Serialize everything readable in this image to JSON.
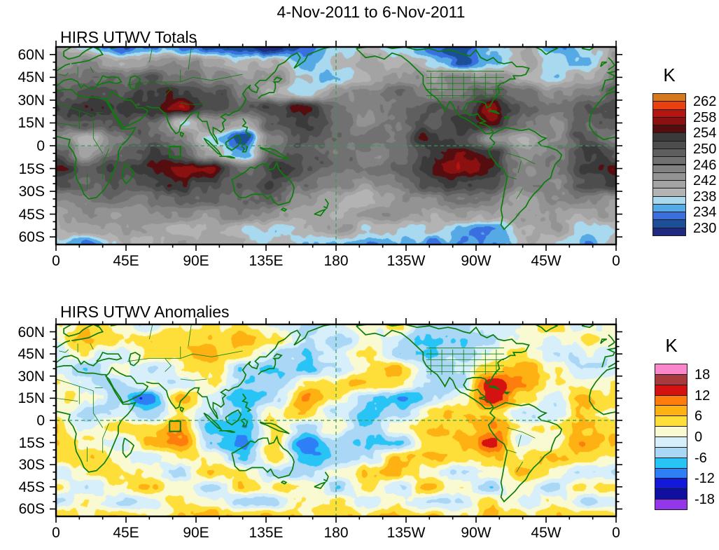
{
  "figure": {
    "title": "4-Nov-2011 to 6-Nov-2011"
  },
  "panels": [
    {
      "title": "HIRS UTWV Totals",
      "colorbar_title": "K"
    },
    {
      "title": "HIRS UTWV Anomalies",
      "colorbar_title": "K"
    }
  ],
  "axes": {
    "x_tick_labels": [
      "0",
      "45E",
      "90E",
      "135E",
      "180",
      "135W",
      "90W",
      "45W",
      "0"
    ],
    "y_tick_labels": [
      "60N",
      "45N",
      "30N",
      "15N",
      "0",
      "15S",
      "30S",
      "45S",
      "60S"
    ]
  },
  "annotations": {
    "equator_line": "dashed-green",
    "meridian_180_line": "dashed-green",
    "study_box": {
      "lon": [
        73,
        80
      ],
      "lat": [
        -7.5,
        -0.5
      ]
    }
  },
  "style_colors": {
    "coastline_green": "#0a7d0a",
    "dashed_line_green": "#2f9e55",
    "frame_black": "#000000"
  },
  "chart_data": [
    {
      "type": "heatmap",
      "subtype": "filled-contour-map",
      "title": "HIRS UTWV Totals",
      "units": "K",
      "lon_range": [
        0,
        360
      ],
      "lat_range": [
        -65,
        65
      ],
      "level_min": 228,
      "level_max": 264,
      "level_step": 2,
      "colorbar_tick_labels": [
        "262",
        "258",
        "254",
        "250",
        "246",
        "242",
        "238",
        "234",
        "230"
      ],
      "palette_low_to_high": [
        "#1f2a80",
        "#1c4f97",
        "#3a6fe0",
        "#55aae6",
        "#a9d9ee",
        "#b3b3b3",
        "#a3a3a3",
        "#939393",
        "#828282",
        "#717171",
        "#5f5f5f",
        "#4d4d4d",
        "#3a3a3a",
        "#550d10",
        "#8b1010",
        "#b51410",
        "#e8400e",
        "#d5791e"
      ],
      "grid": {
        "lon_start": 0,
        "lon_step": 20,
        "lat_start": 65,
        "lat_step": -10,
        "values": [
          [
            241,
            237,
            233,
            235,
            234,
            231,
            229,
            230,
            234,
            237,
            238,
            236,
            233,
            231,
            236,
            239,
            233,
            237,
            241
          ],
          [
            243,
            245,
            240,
            243,
            244,
            241,
            238,
            241,
            236,
            238,
            241,
            239,
            237,
            232,
            237,
            240,
            238,
            236,
            243
          ],
          [
            246,
            247,
            247,
            249,
            247,
            245,
            242,
            244,
            237,
            236,
            240,
            243,
            242,
            245,
            243,
            240,
            236,
            241,
            246
          ],
          [
            249,
            252,
            250,
            252,
            253,
            251,
            247,
            240,
            237,
            243,
            245,
            247,
            244,
            247,
            250,
            247,
            243,
            246,
            249
          ],
          [
            252,
            255,
            253,
            254,
            257,
            250,
            249,
            252,
            255,
            248,
            245,
            247,
            250,
            249,
            257,
            249,
            247,
            250,
            252
          ],
          [
            249,
            251,
            250,
            248,
            238,
            244,
            240,
            250,
            253,
            248,
            244,
            246,
            250,
            252,
            255,
            246,
            244,
            249,
            249
          ],
          [
            245,
            239,
            245,
            249,
            245,
            236,
            230,
            245,
            251,
            248,
            246,
            248,
            254,
            251,
            244,
            238,
            245,
            250,
            245
          ],
          [
            250,
            242,
            248,
            252,
            250,
            240,
            233,
            248,
            250,
            247,
            245,
            247,
            252,
            256,
            254,
            243,
            246,
            253,
            250
          ],
          [
            255,
            249,
            252,
            255,
            257,
            256,
            246,
            253,
            250,
            248,
            246,
            249,
            253,
            258,
            255,
            245,
            247,
            254,
            255
          ],
          [
            251,
            247,
            250,
            252,
            253,
            252,
            249,
            252,
            247,
            245,
            243,
            246,
            250,
            253,
            251,
            246,
            244,
            250,
            251
          ],
          [
            243,
            246,
            247,
            246,
            248,
            249,
            247,
            249,
            243,
            241,
            238,
            243,
            245,
            247,
            245,
            241,
            244,
            246,
            243
          ],
          [
            242,
            243,
            242,
            244,
            245,
            243,
            245,
            243,
            241,
            239,
            241,
            243,
            241,
            243,
            241,
            243,
            241,
            239,
            242
          ],
          [
            239,
            241,
            243,
            241,
            239,
            241,
            239,
            237,
            239,
            241,
            239,
            237,
            239,
            236,
            234,
            239,
            241,
            237,
            239
          ],
          [
            239,
            233,
            239,
            239,
            241,
            241,
            239,
            239,
            237,
            235,
            233,
            235,
            233,
            235,
            233,
            239,
            238,
            235,
            239
          ]
        ]
      }
    },
    {
      "type": "heatmap",
      "subtype": "filled-contour-map",
      "title": "HIRS UTWV Anomalies",
      "units": "K",
      "lon_range": [
        0,
        360
      ],
      "lat_range": [
        -65,
        65
      ],
      "level_min": -21,
      "level_max": 21,
      "level_step": 3,
      "colorbar_tick_labels": [
        "18",
        "12",
        "6",
        "0",
        "-6",
        "-12",
        "-18"
      ],
      "palette_low_to_high": [
        "#9437ea",
        "#0f10a0",
        "#1418d8",
        "#2e7ef5",
        "#28c4f5",
        "#a9d7f5",
        "#d6effb",
        "#fafad2",
        "#fedf3a",
        "#feb112",
        "#fe7d0c",
        "#d51212",
        "#a83a3e",
        "#fb87cb"
      ],
      "grid": {
        "lon_start": 0,
        "lon_step": 20,
        "lat_start": 65,
        "lat_step": -10,
        "values": [
          [
            2,
            5,
            1,
            -2,
            3,
            4,
            2,
            -2,
            -4,
            -2,
            2,
            4,
            -5,
            -6,
            -2,
            2,
            4,
            -2,
            2
          ],
          [
            1,
            8,
            3,
            5,
            6,
            5,
            7,
            4,
            -2,
            -4,
            1,
            -3,
            -5,
            -7,
            -3,
            2,
            -2,
            4,
            1
          ],
          [
            -3,
            2,
            -2,
            4,
            6,
            6,
            5,
            -3,
            -5,
            -2,
            3,
            -4,
            -6,
            -4,
            2,
            5,
            -4,
            -2,
            -3
          ],
          [
            -2,
            -4,
            3,
            -3,
            2,
            4,
            -5,
            -7,
            -7,
            -3,
            4,
            6,
            -4,
            -3,
            6,
            8,
            3,
            -4,
            -2
          ],
          [
            2,
            -2,
            -4,
            2,
            -3,
            3,
            -6,
            -4,
            3,
            5,
            6,
            4,
            -5,
            -3,
            15,
            8,
            2,
            3,
            2
          ],
          [
            3,
            2,
            -4,
            -13,
            8,
            -3,
            -8,
            -4,
            9,
            2,
            -7,
            -9,
            -3,
            2,
            14,
            4,
            -3,
            9,
            3
          ],
          [
            2,
            -4,
            -2,
            -6,
            3,
            -4,
            -7,
            2,
            6,
            -2,
            -8,
            -5,
            4,
            6,
            4,
            -4,
            -2,
            6,
            2
          ],
          [
            5,
            -2,
            3,
            4,
            8,
            -8,
            -8,
            4,
            -5,
            2,
            -6,
            2,
            6,
            4,
            9,
            3,
            4,
            7,
            5
          ],
          [
            6,
            3,
            -3,
            7,
            11,
            -6,
            -9,
            5,
            -11,
            -3,
            -7,
            -7,
            6,
            5,
            14,
            -2,
            3,
            9,
            6
          ],
          [
            3,
            7,
            2,
            -2,
            5,
            3,
            -5,
            6,
            -9,
            -5,
            -4,
            6,
            7,
            3,
            7,
            3,
            7,
            4,
            3
          ],
          [
            -3,
            4,
            6,
            3,
            -4,
            6,
            3,
            -4,
            -6,
            2,
            5,
            7,
            3,
            -4,
            2,
            7,
            3,
            -3,
            -3
          ],
          [
            4,
            -3,
            2,
            6,
            3,
            -3,
            6,
            3,
            2,
            -4,
            3,
            -3,
            6,
            2,
            -4,
            3,
            -3,
            5,
            4
          ],
          [
            -2,
            3,
            -4,
            -2,
            4,
            2,
            -3,
            -5,
            3,
            5,
            -3,
            2,
            -5,
            -3,
            4,
            -2,
            3,
            -4,
            -2
          ],
          [
            5,
            4,
            6,
            3,
            5,
            7,
            4,
            6,
            3,
            6,
            4,
            7,
            5,
            3,
            6,
            4,
            6,
            5,
            5
          ]
        ]
      }
    }
  ]
}
